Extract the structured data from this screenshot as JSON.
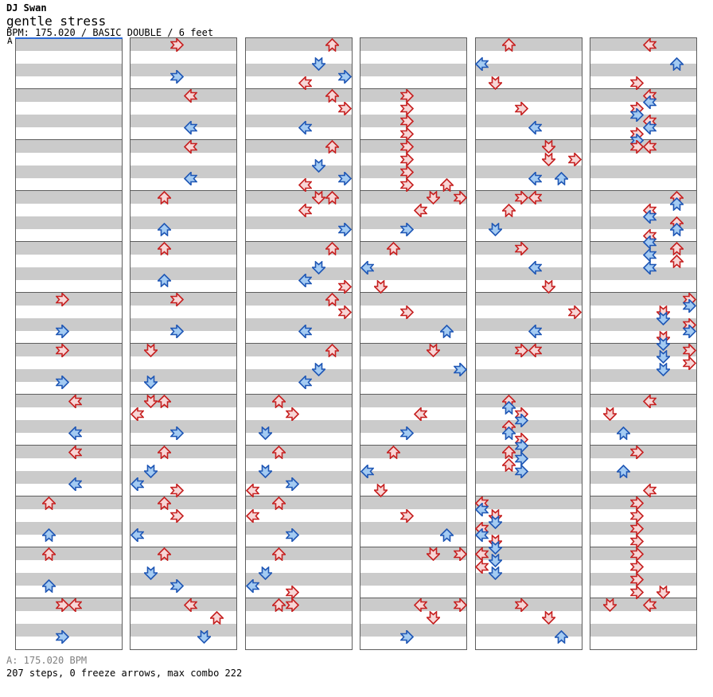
{
  "header": {
    "artist": "DJ Swan",
    "title": "gentle stress",
    "info": "BPM: 175.020 / BASIC DOUBLE / 6 feet"
  },
  "marker": {
    "label": "A"
  },
  "footer": {
    "bpm_line": "A: 175.020 BPM",
    "stats_line": "207 steps, 0 freeze arrows, max combo 222"
  },
  "colors": {
    "quarter_note_stroke": "#c62020",
    "quarter_note_fill": "#f7d7d7",
    "eighth_note_stroke": "#1f57b5",
    "eighth_note_fill": "#a4cbf2",
    "beat_band_gray": "#cbcbcb",
    "measure_line": "#5e5e5e",
    "bpm_marker_blue": "#2e6bd4"
  },
  "chart": {
    "columns": 6,
    "measures_per_column": 12,
    "lanes": 8,
    "lane_directions": [
      "left",
      "down",
      "up",
      "right",
      "left",
      "down",
      "up",
      "right"
    ],
    "notes": [
      [
        0,
        5,
        0,
        3
      ],
      [
        0,
        5,
        2.5,
        3
      ],
      [
        0,
        6,
        0,
        3
      ],
      [
        0,
        6,
        2.5,
        3
      ],
      [
        0,
        7,
        0,
        4
      ],
      [
        0,
        7,
        2.5,
        4
      ],
      [
        0,
        8,
        0,
        4
      ],
      [
        0,
        8,
        2.5,
        4
      ],
      [
        0,
        9,
        0,
        2
      ],
      [
        0,
        9,
        2.5,
        2
      ],
      [
        0,
        10,
        0,
        2
      ],
      [
        0,
        10,
        2.5,
        2
      ],
      [
        0,
        11,
        0,
        3
      ],
      [
        0,
        11,
        0,
        4
      ],
      [
        0,
        11,
        2.5,
        3
      ],
      [
        1,
        0,
        0,
        3
      ],
      [
        1,
        0,
        2.5,
        3
      ],
      [
        1,
        1,
        0,
        4
      ],
      [
        1,
        1,
        2.5,
        4
      ],
      [
        1,
        2,
        0,
        4
      ],
      [
        1,
        2,
        2.5,
        4
      ],
      [
        1,
        3,
        0,
        2
      ],
      [
        1,
        3,
        2.5,
        2
      ],
      [
        1,
        4,
        0,
        2
      ],
      [
        1,
        4,
        2.5,
        2
      ],
      [
        1,
        5,
        0,
        3
      ],
      [
        1,
        5,
        2.5,
        3
      ],
      [
        1,
        6,
        0,
        1
      ],
      [
        1,
        6,
        2.5,
        1
      ],
      [
        1,
        7,
        0,
        1
      ],
      [
        1,
        7,
        0,
        2
      ],
      [
        1,
        7,
        1,
        0
      ],
      [
        1,
        7,
        2.5,
        3
      ],
      [
        1,
        8,
        0,
        2
      ],
      [
        1,
        8,
        1.5,
        1
      ],
      [
        1,
        8,
        2.5,
        0
      ],
      [
        1,
        8,
        3,
        3
      ],
      [
        1,
        9,
        0,
        2
      ],
      [
        1,
        9,
        1,
        3
      ],
      [
        1,
        9,
        2.5,
        0
      ],
      [
        1,
        10,
        0,
        2
      ],
      [
        1,
        10,
        1.5,
        1
      ],
      [
        1,
        10,
        2.5,
        3
      ],
      [
        1,
        11,
        0,
        4
      ],
      [
        1,
        11,
        1,
        6
      ],
      [
        1,
        11,
        2.5,
        5
      ],
      [
        2,
        0,
        0,
        6
      ],
      [
        2,
        0,
        1.5,
        5
      ],
      [
        2,
        0,
        2.5,
        7
      ],
      [
        2,
        0,
        3,
        4
      ],
      [
        2,
        1,
        0,
        6
      ],
      [
        2,
        1,
        1,
        7
      ],
      [
        2,
        1,
        2.5,
        4
      ],
      [
        2,
        2,
        0,
        6
      ],
      [
        2,
        2,
        1.5,
        5
      ],
      [
        2,
        2,
        2.5,
        7
      ],
      [
        2,
        2,
        3,
        4
      ],
      [
        2,
        3,
        0,
        5
      ],
      [
        2,
        3,
        0,
        6
      ],
      [
        2,
        3,
        1,
        4
      ],
      [
        2,
        3,
        2.5,
        7
      ],
      [
        2,
        4,
        0,
        6
      ],
      [
        2,
        4,
        1.5,
        5
      ],
      [
        2,
        4,
        2.5,
        4
      ],
      [
        2,
        4,
        3,
        7
      ],
      [
        2,
        5,
        0,
        6
      ],
      [
        2,
        5,
        1,
        7
      ],
      [
        2,
        5,
        2.5,
        4
      ],
      [
        2,
        6,
        0,
        6
      ],
      [
        2,
        6,
        1.5,
        5
      ],
      [
        2,
        6,
        2.5,
        4
      ],
      [
        2,
        7,
        0,
        2
      ],
      [
        2,
        7,
        1,
        3
      ],
      [
        2,
        7,
        2.5,
        1
      ],
      [
        2,
        8,
        0,
        2
      ],
      [
        2,
        8,
        1.5,
        1
      ],
      [
        2,
        8,
        2.5,
        3
      ],
      [
        2,
        8,
        3,
        0
      ],
      [
        2,
        9,
        0,
        2
      ],
      [
        2,
        9,
        1,
        0
      ],
      [
        2,
        9,
        2.5,
        3
      ],
      [
        2,
        10,
        0,
        2
      ],
      [
        2,
        10,
        1.5,
        1
      ],
      [
        2,
        10,
        2.5,
        0
      ],
      [
        2,
        10,
        3,
        3
      ],
      [
        2,
        11,
        0,
        2
      ],
      [
        2,
        11,
        0,
        3
      ],
      [
        3,
        1,
        0,
        3
      ],
      [
        3,
        1,
        1,
        3
      ],
      [
        3,
        1,
        2,
        3
      ],
      [
        3,
        1,
        3,
        3
      ],
      [
        3,
        2,
        0,
        3
      ],
      [
        3,
        2,
        1,
        3
      ],
      [
        3,
        2,
        2,
        3
      ],
      [
        3,
        2,
        3,
        3
      ],
      [
        3,
        2,
        3,
        6
      ],
      [
        3,
        3,
        0,
        5
      ],
      [
        3,
        3,
        0,
        7
      ],
      [
        3,
        3,
        1,
        4
      ],
      [
        3,
        3,
        2.5,
        3
      ],
      [
        3,
        4,
        0,
        2
      ],
      [
        3,
        4,
        1.5,
        0
      ],
      [
        3,
        4,
        3,
        1
      ],
      [
        3,
        5,
        1,
        3
      ],
      [
        3,
        5,
        2.5,
        6
      ],
      [
        3,
        6,
        0,
        5
      ],
      [
        3,
        6,
        1.5,
        7
      ],
      [
        3,
        7,
        1,
        4
      ],
      [
        3,
        7,
        2.5,
        3
      ],
      [
        3,
        8,
        0,
        2
      ],
      [
        3,
        8,
        1.5,
        0
      ],
      [
        3,
        8,
        3,
        1
      ],
      [
        3,
        9,
        1,
        3
      ],
      [
        3,
        9,
        2.5,
        6
      ],
      [
        3,
        10,
        0,
        5
      ],
      [
        3,
        10,
        0,
        7
      ],
      [
        3,
        11,
        0,
        4
      ],
      [
        3,
        11,
        0,
        7
      ],
      [
        3,
        11,
        1,
        5
      ],
      [
        3,
        11,
        2.5,
        3
      ],
      [
        4,
        0,
        0,
        2
      ],
      [
        4,
        0,
        1.5,
        0
      ],
      [
        4,
        0,
        3,
        1
      ],
      [
        4,
        1,
        1,
        3
      ],
      [
        4,
        1,
        2.5,
        4
      ],
      [
        4,
        2,
        0,
        5
      ],
      [
        4,
        2,
        1,
        5
      ],
      [
        4,
        2,
        1,
        7
      ],
      [
        4,
        2,
        2.5,
        4
      ],
      [
        4,
        2,
        2.5,
        6
      ],
      [
        4,
        3,
        0,
        3
      ],
      [
        4,
        3,
        0,
        4
      ],
      [
        4,
        3,
        1,
        2
      ],
      [
        4,
        3,
        2.5,
        1
      ],
      [
        4,
        4,
        0,
        3
      ],
      [
        4,
        4,
        1.5,
        4
      ],
      [
        4,
        4,
        3,
        5
      ],
      [
        4,
        5,
        1,
        7
      ],
      [
        4,
        5,
        2.5,
        4
      ],
      [
        4,
        6,
        0,
        3
      ],
      [
        4,
        6,
        0,
        4
      ],
      [
        4,
        7,
        0,
        2
      ],
      [
        4,
        7,
        0.5,
        2
      ],
      [
        4,
        7,
        1,
        3
      ],
      [
        4,
        7,
        1.5,
        3
      ],
      [
        4,
        7,
        2,
        2
      ],
      [
        4,
        7,
        2.5,
        2
      ],
      [
        4,
        7,
        3,
        3
      ],
      [
        4,
        7,
        3.5,
        3
      ],
      [
        4,
        8,
        0,
        2
      ],
      [
        4,
        8,
        0.5,
        3
      ],
      [
        4,
        8,
        1,
        2
      ],
      [
        4,
        8,
        1.5,
        3
      ],
      [
        4,
        9,
        0,
        0
      ],
      [
        4,
        9,
        0.5,
        0
      ],
      [
        4,
        9,
        1,
        1
      ],
      [
        4,
        9,
        1.5,
        1
      ],
      [
        4,
        9,
        2,
        0
      ],
      [
        4,
        9,
        2.5,
        0
      ],
      [
        4,
        9,
        3,
        1
      ],
      [
        4,
        9,
        3.5,
        1
      ],
      [
        4,
        10,
        0,
        0
      ],
      [
        4,
        10,
        0.5,
        1
      ],
      [
        4,
        10,
        1,
        0
      ],
      [
        4,
        10,
        1.5,
        1
      ],
      [
        4,
        11,
        0,
        3
      ],
      [
        4,
        11,
        1,
        5
      ],
      [
        4,
        11,
        2.5,
        6
      ],
      [
        5,
        0,
        0,
        4
      ],
      [
        5,
        0,
        1.5,
        6
      ],
      [
        5,
        0,
        3,
        3
      ],
      [
        5,
        1,
        0,
        4
      ],
      [
        5,
        1,
        0.5,
        4
      ],
      [
        5,
        1,
        1,
        3
      ],
      [
        5,
        1,
        1.5,
        3
      ],
      [
        5,
        1,
        2,
        4
      ],
      [
        5,
        1,
        2.5,
        4
      ],
      [
        5,
        1,
        3,
        3
      ],
      [
        5,
        1,
        3.5,
        3
      ],
      [
        5,
        2,
        0,
        3
      ],
      [
        5,
        2,
        0,
        4
      ],
      [
        5,
        3,
        0,
        6
      ],
      [
        5,
        3,
        0.5,
        6
      ],
      [
        5,
        3,
        1,
        4
      ],
      [
        5,
        3,
        1.5,
        4
      ],
      [
        5,
        3,
        2,
        6
      ],
      [
        5,
        3,
        2.5,
        6
      ],
      [
        5,
        3,
        3,
        4
      ],
      [
        5,
        3,
        3.5,
        4
      ],
      [
        5,
        4,
        0,
        6
      ],
      [
        5,
        4,
        0.5,
        4
      ],
      [
        5,
        4,
        1,
        6
      ],
      [
        5,
        4,
        1.5,
        4
      ],
      [
        5,
        5,
        0,
        7
      ],
      [
        5,
        5,
        0.5,
        7
      ],
      [
        5,
        5,
        1,
        5
      ],
      [
        5,
        5,
        1.5,
        5
      ],
      [
        5,
        5,
        2,
        7
      ],
      [
        5,
        5,
        2.5,
        7
      ],
      [
        5,
        5,
        3,
        5
      ],
      [
        5,
        5,
        3.5,
        5
      ],
      [
        5,
        6,
        0,
        7
      ],
      [
        5,
        6,
        0.5,
        5
      ],
      [
        5,
        6,
        1,
        7
      ],
      [
        5,
        6,
        1.5,
        5
      ],
      [
        5,
        7,
        0,
        4
      ],
      [
        5,
        7,
        1,
        1
      ],
      [
        5,
        7,
        2.5,
        2
      ],
      [
        5,
        8,
        0,
        3
      ],
      [
        5,
        8,
        1.5,
        2
      ],
      [
        5,
        8,
        3,
        4
      ],
      [
        5,
        9,
        0,
        3
      ],
      [
        5,
        9,
        1,
        3
      ],
      [
        5,
        9,
        2,
        3
      ],
      [
        5,
        9,
        3,
        3
      ],
      [
        5,
        10,
        0,
        3
      ],
      [
        5,
        10,
        1,
        3
      ],
      [
        5,
        10,
        2,
        3
      ],
      [
        5,
        10,
        3,
        3
      ],
      [
        5,
        10,
        3,
        5
      ],
      [
        5,
        11,
        0,
        1
      ],
      [
        5,
        11,
        0,
        4
      ]
    ]
  }
}
